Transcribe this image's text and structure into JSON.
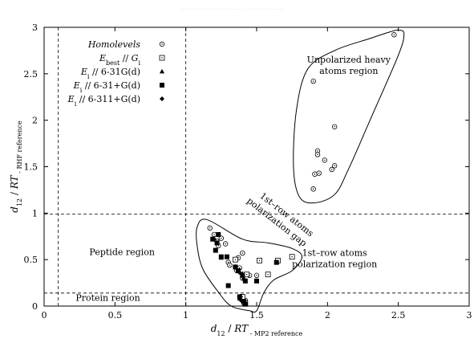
{
  "header_text": "···· ····· · ····· ·· ·· ········ · ····· ·· ····· ·······",
  "chart_data": {
    "type": "scatter",
    "xlabel_parts": [
      "d",
      "12",
      " / ",
      "RT",
      "  -  MP2 reference"
    ],
    "ylabel_parts": [
      "d",
      "12",
      " / ",
      "RT",
      "  -  RHF reference"
    ],
    "xlim": [
      0,
      3
    ],
    "ylim": [
      0,
      3
    ],
    "x_ticks": [
      0,
      0.5,
      1,
      1.5,
      2,
      2.5,
      3
    ],
    "y_ticks": [
      0,
      0.5,
      1,
      1.5,
      2,
      2.5,
      3
    ],
    "x_tick_labels": [
      "0",
      "0.5",
      "1",
      "1.5",
      "2",
      "2.5",
      "3"
    ],
    "y_tick_labels": [
      "0",
      "0.5",
      "1",
      "1.5",
      "2",
      "2.5",
      "3"
    ],
    "grid": false,
    "legend_position": "top-left",
    "ref_lines": {
      "vertical": [
        0.1,
        1.0
      ],
      "horizontal": [
        0.99,
        0.14
      ]
    },
    "series": [
      {
        "name_parts": [
          "Homolevels"
        ],
        "marker": "circle-dot",
        "points": [
          [
            2.47,
            2.92
          ],
          [
            1.9,
            2.42
          ],
          [
            2.05,
            1.93
          ],
          [
            1.93,
            1.67
          ],
          [
            1.93,
            1.63
          ],
          [
            1.98,
            1.57
          ],
          [
            2.05,
            1.51
          ],
          [
            2.03,
            1.47
          ],
          [
            1.94,
            1.43
          ],
          [
            1.91,
            1.42
          ],
          [
            1.9,
            1.26
          ],
          [
            1.17,
            0.84
          ],
          [
            1.2,
            0.77
          ],
          [
            1.25,
            0.73
          ],
          [
            1.22,
            0.7
          ],
          [
            1.28,
            0.67
          ],
          [
            1.23,
            0.65
          ],
          [
            1.4,
            0.57
          ],
          [
            1.37,
            0.52
          ],
          [
            1.3,
            0.47
          ],
          [
            1.31,
            0.44
          ],
          [
            1.35,
            0.42
          ],
          [
            1.38,
            0.41
          ],
          [
            1.36,
            0.38
          ],
          [
            1.45,
            0.33
          ],
          [
            1.4,
            0.3
          ],
          [
            1.5,
            0.33
          ],
          [
            1.39,
            0.08
          ],
          [
            1.42,
            0.06
          ],
          [
            1.41,
            0.03
          ]
        ]
      },
      {
        "name_parts": [
          "E",
          "best",
          " // ",
          "G",
          "i"
        ],
        "marker": "square-dot",
        "points": [
          [
            1.75,
            0.53
          ],
          [
            1.52,
            0.49
          ],
          [
            1.65,
            0.49
          ],
          [
            1.35,
            0.5
          ],
          [
            1.43,
            0.34
          ],
          [
            1.58,
            0.34
          ],
          [
            1.4,
            0.1
          ],
          [
            1.42,
            0.03
          ]
        ]
      },
      {
        "name_parts": [
          "E",
          "i",
          " // 6-31G(d)"
        ],
        "marker": "triangle",
        "points": [
          [
            1.2,
            0.73
          ],
          [
            1.25,
            0.52
          ],
          [
            1.4,
            0.35
          ],
          [
            1.38,
            0.08
          ]
        ]
      },
      {
        "name_parts": [
          "E",
          "i",
          " // 6-31+G(d)"
        ],
        "marker": "square-filled",
        "points": [
          [
            1.23,
            0.77
          ],
          [
            1.19,
            0.72
          ],
          [
            1.22,
            0.68
          ],
          [
            1.21,
            0.6
          ],
          [
            1.25,
            0.53
          ],
          [
            1.29,
            0.53
          ],
          [
            1.35,
            0.42
          ],
          [
            1.37,
            0.38
          ],
          [
            1.4,
            0.33
          ],
          [
            1.42,
            0.27
          ],
          [
            1.5,
            0.27
          ],
          [
            1.3,
            0.22
          ],
          [
            1.38,
            0.1
          ],
          [
            1.41,
            0.05
          ],
          [
            1.42,
            0.02
          ],
          [
            1.64,
            0.47
          ]
        ]
      },
      {
        "name_parts": [
          "E",
          "i",
          " // 6-311+G(d)"
        ],
        "marker": "diamond",
        "points": [
          [
            1.38,
            0.36
          ],
          [
            1.41,
            0.29
          ],
          [
            1.39,
            0.06
          ]
        ]
      }
    ],
    "annotations": [
      {
        "text": "Unpolarized heavy",
        "x": 2.15,
        "y": 2.62
      },
      {
        "text": "atoms region",
        "x": 2.15,
        "y": 2.5
      },
      {
        "text": "Peptide region",
        "x": 0.55,
        "y": 0.55
      },
      {
        "text": "Protein region",
        "x": 0.45,
        "y": 0.055
      },
      {
        "text": "1st–row atoms",
        "x": 2.05,
        "y": 0.54
      },
      {
        "text": "polarization region",
        "x": 2.05,
        "y": 0.42
      }
    ],
    "rotated_annotations": [
      {
        "text": "1st–row atoms",
        "x": 1.7,
        "y": 0.96,
        "angle": 38
      },
      {
        "text": "polarization gap",
        "x": 1.63,
        "y": 0.88,
        "angle": 38
      }
    ]
  }
}
